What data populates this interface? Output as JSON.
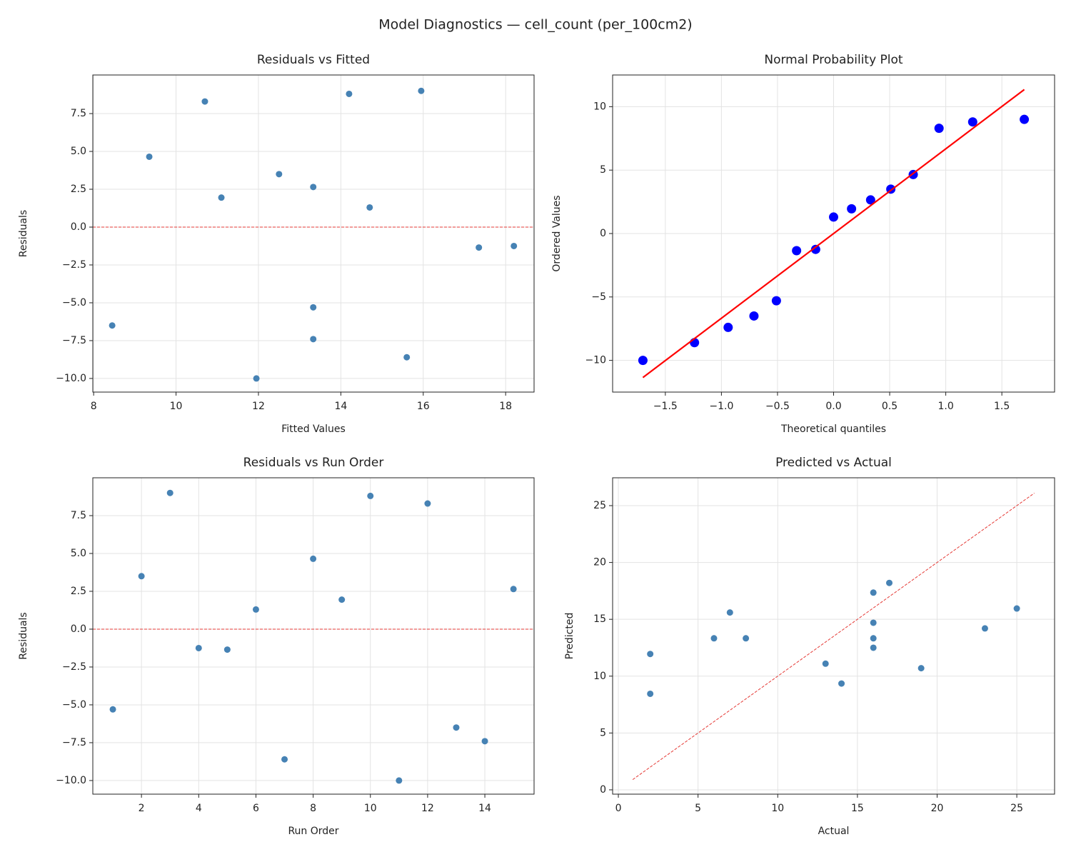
{
  "title": "Model Diagnostics — cell_count (per_100cm2)",
  "chart_data": [
    {
      "type": "scatter",
      "title": "Residuals vs Fitted",
      "xlabel": "Fitted Values",
      "ylabel": "Residuals",
      "x": [
        13.33,
        12.5,
        15.95,
        18.2,
        17.35,
        14.7,
        15.6,
        9.35,
        11.1,
        14.2,
        11.95,
        10.7,
        8.45,
        13.33,
        13.33
      ],
      "values": [
        -5.3,
        3.5,
        9.0,
        -1.25,
        -1.35,
        1.3,
        -8.6,
        4.65,
        1.95,
        8.8,
        -10.0,
        8.3,
        -6.5,
        -7.4,
        2.65
      ],
      "color": "#4682b4",
      "grid": true,
      "xlim": [
        7.98,
        18.69
      ],
      "ylim": [
        -10.9,
        10.05
      ],
      "xticks": [
        8,
        10,
        12,
        14,
        16,
        18
      ],
      "yticks": [
        {
          "value": -10,
          "label": "−10.0"
        },
        {
          "value": -7.5,
          "label": "−7.5"
        },
        {
          "value": -5,
          "label": "−5.0"
        },
        {
          "value": -2.5,
          "label": "−2.5"
        },
        {
          "value": 0,
          "label": "0.0"
        },
        2.5,
        {
          "value": 5,
          "label": "5.0"
        },
        7.5
      ],
      "hline": {
        "y": 0,
        "color": "#e53935"
      }
    },
    {
      "type": "scatter",
      "title": "Normal Probability Plot",
      "xlabel": "Theoretical quantiles",
      "ylabel": "Ordered Values",
      "x": [
        -1.7,
        -1.24,
        -0.94,
        -0.71,
        -0.51,
        -0.33,
        -0.16,
        0,
        0.16,
        0.33,
        0.51,
        0.71,
        0.94,
        1.24,
        1.7
      ],
      "values": [
        -10.0,
        -8.6,
        -7.4,
        -6.5,
        -5.3,
        -1.35,
        -1.25,
        1.3,
        1.95,
        2.65,
        3.5,
        4.65,
        8.3,
        8.8,
        9.0
      ],
      "color": "#0000ff",
      "grid": true,
      "xlim": [
        -1.97,
        1.97
      ],
      "ylim": [
        -12.5,
        12.5
      ],
      "xticks": [
        {
          "value": -1.5,
          "label": "−1.5"
        },
        {
          "value": -1,
          "label": "−1.0"
        },
        {
          "value": -0.5,
          "label": "−0.5"
        },
        {
          "value": 0,
          "label": "0.0"
        },
        0.5,
        {
          "value": 1,
          "label": "1.0"
        },
        1.5
      ],
      "yticks": [
        {
          "value": -10,
          "label": "−10"
        },
        {
          "value": -5,
          "label": "−5"
        },
        0,
        5,
        10
      ],
      "fit_line": {
        "x": [
          -1.7,
          1.7
        ],
        "y": [
          -11.35,
          11.35
        ],
        "color": "#ff0000"
      }
    },
    {
      "type": "scatter",
      "title": "Residuals vs Run Order",
      "xlabel": "Run Order",
      "ylabel": "Residuals",
      "x": [
        1,
        2,
        3,
        4,
        5,
        6,
        7,
        8,
        9,
        10,
        11,
        12,
        13,
        14,
        15
      ],
      "values": [
        -5.3,
        3.5,
        9.0,
        -1.25,
        -1.35,
        1.3,
        -8.6,
        4.65,
        1.95,
        8.8,
        -10.0,
        8.3,
        -6.5,
        -7.4,
        2.65
      ],
      "color": "#4682b4",
      "grid": true,
      "xlim": [
        0.3,
        15.72
      ],
      "ylim": [
        -10.9,
        10.0
      ],
      "xticks": [
        2,
        4,
        6,
        8,
        10,
        12,
        14
      ],
      "yticks": [
        {
          "value": -10,
          "label": "−10.0"
        },
        {
          "value": -7.5,
          "label": "−7.5"
        },
        {
          "value": -5,
          "label": "−5.0"
        },
        {
          "value": -2.5,
          "label": "−2.5"
        },
        {
          "value": 0,
          "label": "0.0"
        },
        2.5,
        {
          "value": 5,
          "label": "5.0"
        },
        7.5
      ],
      "hline": {
        "y": 0,
        "color": "#e53935"
      }
    },
    {
      "type": "scatter",
      "title": "Predicted vs Actual",
      "xlabel": "Actual",
      "ylabel": "Predicted",
      "x": [
        8,
        16,
        25,
        17,
        16,
        16,
        7,
        14,
        13,
        23,
        2,
        19,
        2,
        6,
        16
      ],
      "values": [
        13.33,
        12.5,
        15.95,
        18.2,
        17.35,
        14.7,
        15.6,
        9.35,
        11.1,
        14.2,
        11.95,
        10.7,
        8.45,
        13.33,
        13.33
      ],
      "color": "#4682b4",
      "grid": true,
      "xlim": [
        -0.36,
        27.37
      ],
      "ylim": [
        -0.38,
        27.45
      ],
      "xticks": [
        0,
        5,
        10,
        15,
        20,
        25
      ],
      "yticks": [
        0,
        5,
        10,
        15,
        20,
        25
      ],
      "diagonal": {
        "x": [
          0.9,
          26.1
        ],
        "y": [
          0.9,
          26.1
        ],
        "color": "#e53935"
      }
    }
  ]
}
